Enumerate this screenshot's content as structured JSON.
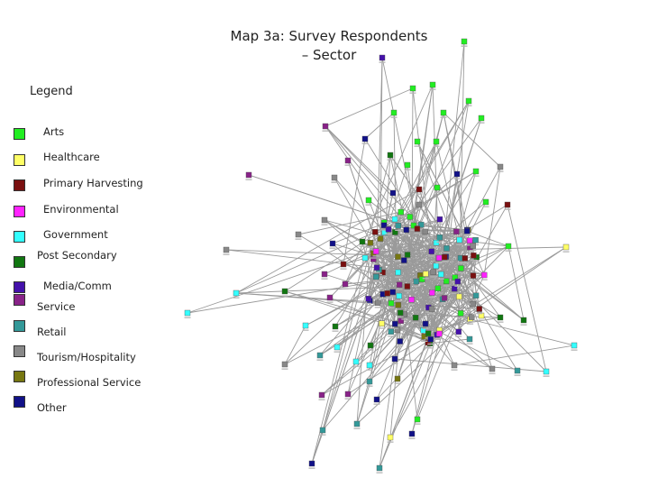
{
  "title_line1": "Map 3a: Survey Respondents",
  "title_line2": "– Sector",
  "legend": {
    "title": "Legend",
    "items": [
      {
        "label": "Arts",
        "color": "#22ee22"
      },
      {
        "label": "Healthcare",
        "color": "#ffff66"
      },
      {
        "label": "Primary Harvesting",
        "color": "#7a1010"
      },
      {
        "label": "Environmental",
        "color": "#ff22ff"
      },
      {
        "label": "Government",
        "color": "#33ffff"
      },
      {
        "label": "Post Secondary",
        "color": "#117711"
      },
      {
        "label": "Media/Comm",
        "color": "#4411aa"
      },
      {
        "label": "Service",
        "color": "#882288"
      },
      {
        "label": "Retail",
        "color": "#339999"
      },
      {
        "label": "Tourism/Hospitality",
        "color": "#888888"
      },
      {
        "label": "Professional Service",
        "color": "#777711"
      },
      {
        "label": "Other",
        "color": "#111188"
      }
    ]
  }
}
